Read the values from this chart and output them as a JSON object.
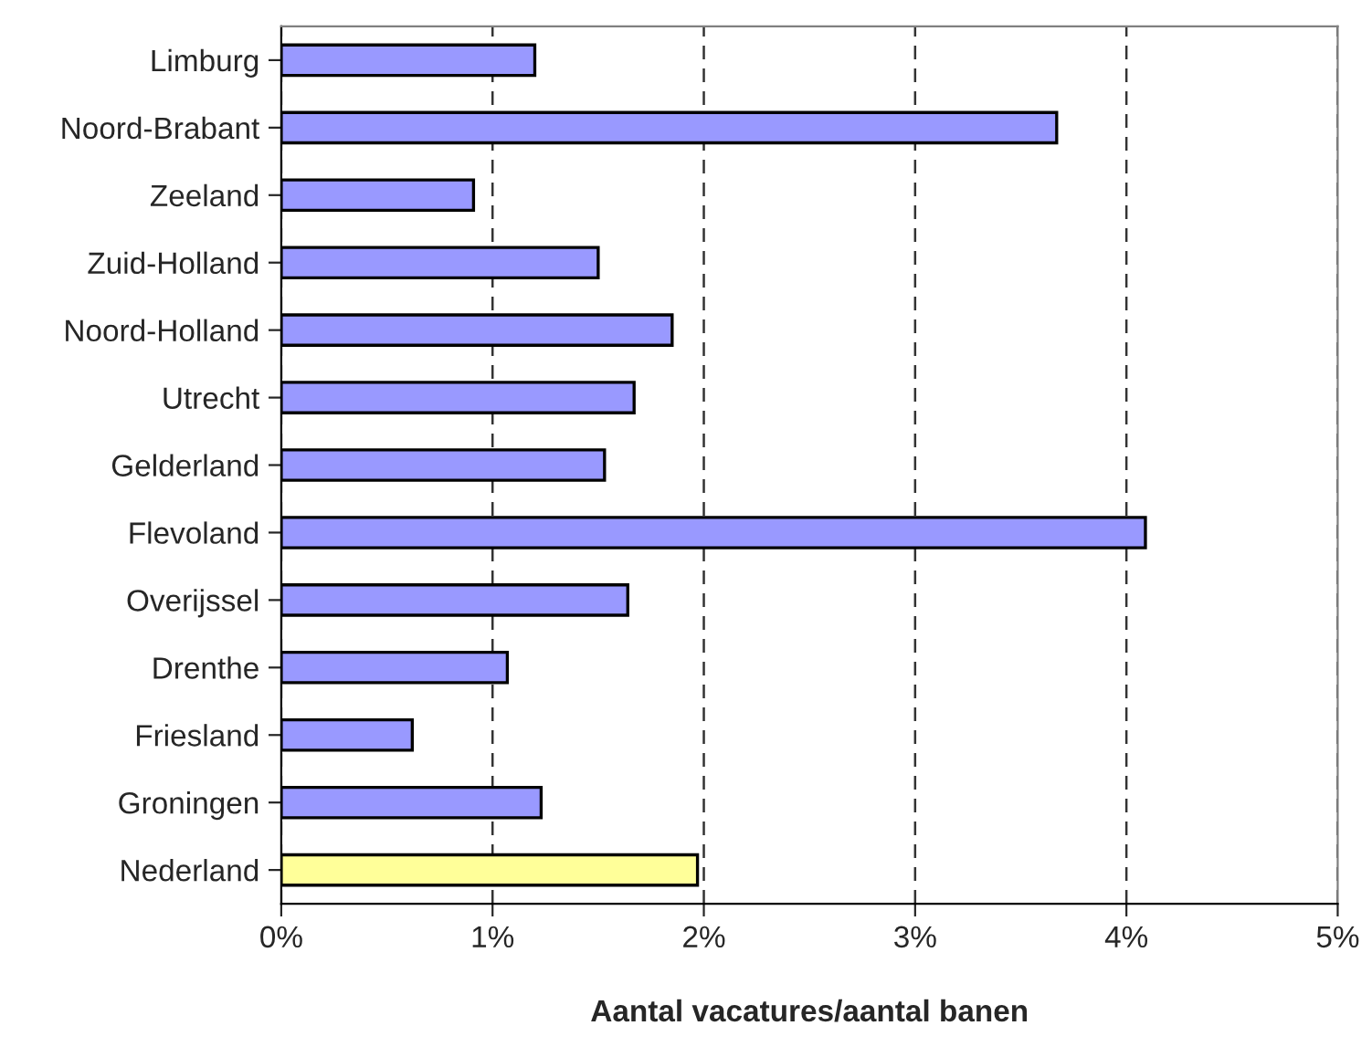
{
  "chart_data": {
    "type": "bar",
    "orientation": "horizontal",
    "xlabel": "Aantal vacatures/aantal banen",
    "categories": [
      "Limburg",
      "Noord-Brabant",
      "Zeeland",
      "Zuid-Holland",
      "Noord-Holland",
      "Utrecht",
      "Gelderland",
      "Flevoland",
      "Overijssel",
      "Drenthe",
      "Friesland",
      "Groningen",
      "Nederland"
    ],
    "values": [
      1.2,
      3.67,
      0.91,
      1.5,
      1.85,
      1.67,
      1.53,
      4.09,
      1.64,
      1.07,
      0.62,
      1.23,
      1.97
    ],
    "colors": [
      "#9999ff",
      "#9999ff",
      "#9999ff",
      "#9999ff",
      "#9999ff",
      "#9999ff",
      "#9999ff",
      "#9999ff",
      "#9999ff",
      "#9999ff",
      "#9999ff",
      "#9999ff",
      "#ffff99"
    ],
    "xlim": [
      0,
      5
    ],
    "xticks": [
      {
        "value": 0,
        "label": "0%"
      },
      {
        "value": 1,
        "label": "1%"
      },
      {
        "value": 2,
        "label": "2%"
      },
      {
        "value": 3,
        "label": "3%"
      },
      {
        "value": 4,
        "label": "4%"
      },
      {
        "value": 5,
        "label": "5%"
      }
    ],
    "grid": "x"
  }
}
